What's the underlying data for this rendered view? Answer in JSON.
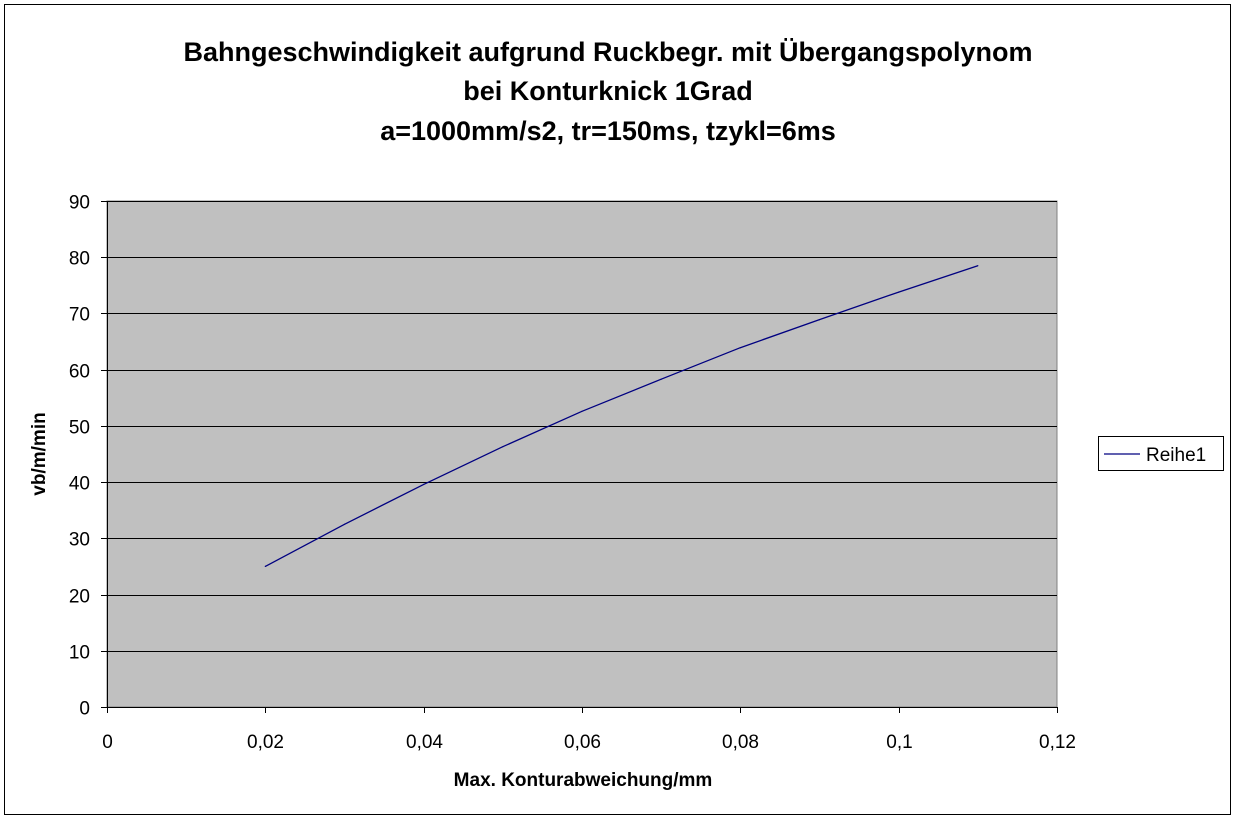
{
  "chart_data": {
    "type": "line",
    "title_lines": [
      "Bahngeschwindigkeit aufgrund Ruckbegr. mit Übergangspolynom",
      "bei Konturknick 1Grad",
      "a=1000mm/s2, tr=150ms, tzykl=6ms"
    ],
    "xlabel": "Max. Konturabweichung/mm",
    "ylabel": "vb/m/min",
    "xlim": [
      0,
      0.12
    ],
    "ylim": [
      0,
      90
    ],
    "x_ticks": [
      0,
      0.02,
      0.04,
      0.06,
      0.08,
      0.1,
      0.12
    ],
    "x_tick_labels": [
      "0",
      "0,02",
      "0,04",
      "0,06",
      "0,08",
      "0,1",
      "0,12"
    ],
    "y_ticks": [
      0,
      10,
      20,
      30,
      40,
      50,
      60,
      70,
      80,
      90
    ],
    "y_tick_labels": [
      "0",
      "10",
      "20",
      "30",
      "40",
      "50",
      "60",
      "70",
      "80",
      "90"
    ],
    "grid": "horizontal major lines",
    "plot_background": "#c0c0c0",
    "legend_position": "right",
    "series": [
      {
        "name": "Reihe1",
        "color": "#000080",
        "x": [
          0.02,
          0.03,
          0.04,
          0.05,
          0.06,
          0.07,
          0.08,
          0.09,
          0.1,
          0.11
        ],
        "y": [
          25,
          32.5,
          39.6,
          46.3,
          52.6,
          58.3,
          63.9,
          68.9,
          73.8,
          78.5
        ]
      }
    ]
  }
}
